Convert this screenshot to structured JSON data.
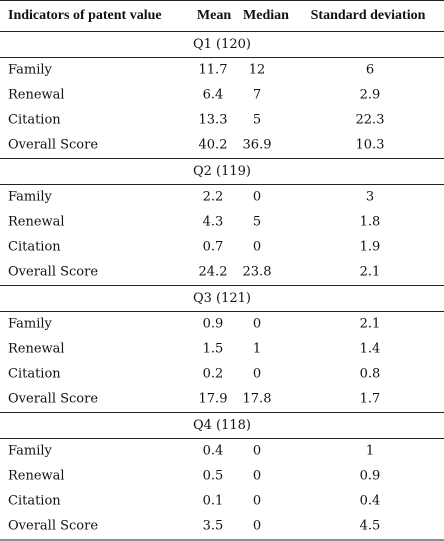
{
  "table": {
    "header": [
      "Indicators of patent value",
      "Mean",
      "Median",
      "Standard deviation"
    ],
    "groups": [
      {
        "title": "Q1 (120)",
        "rows": [
          [
            "Family",
            11.7,
            12,
            6
          ],
          [
            "Renewal",
            6.4,
            7,
            2.9
          ],
          [
            "Citation",
            13.3,
            5,
            22.3
          ],
          [
            "Overall Score",
            40.2,
            36.9,
            10.3
          ]
        ]
      },
      {
        "title": "Q2 (119)",
        "rows": [
          [
            "Family",
            2.2,
            0,
            3
          ],
          [
            "Renewal",
            4.3,
            5,
            1.8
          ],
          [
            "Citation",
            0.7,
            0,
            1.9
          ],
          [
            "Overall Score",
            24.2,
            23.8,
            2.1
          ]
        ]
      },
      {
        "title": "Q3 (121)",
        "rows": [
          [
            "Family",
            0.9,
            0,
            2.1
          ],
          [
            "Renewal",
            1.5,
            1,
            1.4
          ],
          [
            "Citation",
            0.2,
            0,
            0.8
          ],
          [
            "Overall Score",
            17.9,
            17.8,
            1.7
          ]
        ]
      },
      {
        "title": "Q4 (118)",
        "rows": [
          [
            "Family",
            0.4,
            0,
            1
          ],
          [
            "Renewal",
            0.5,
            0,
            0.9
          ],
          [
            "Citation",
            0.1,
            0,
            0.4
          ],
          [
            "Overall Score",
            3.5,
            0,
            4.5
          ]
        ]
      }
    ]
  }
}
